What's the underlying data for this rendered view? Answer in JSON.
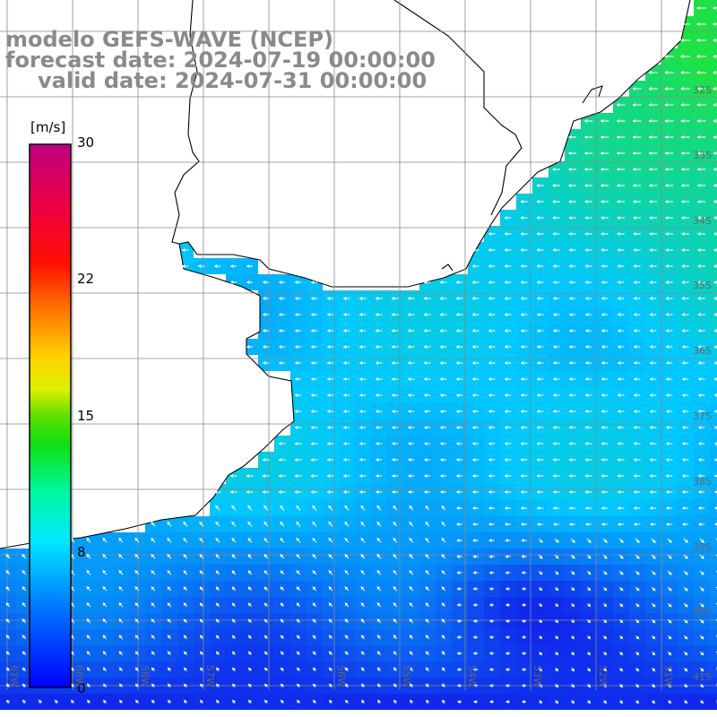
{
  "title": {
    "line1": "modelo GEFS-WAVE (NCEP)",
    "line2": "forecast date: 2024-07-19 00:00:00",
    "line3": "valid date: 2024-07-31 00:00:00"
  },
  "colorbar": {
    "unit": "[m/s]",
    "ticks": [
      "30",
      "22",
      "15",
      "8",
      "0"
    ],
    "min": 0,
    "max": 30
  },
  "map": {
    "variable": "wind speed and direction",
    "lat_labels": [
      "32S",
      "33S",
      "34S",
      "35S",
      "36S",
      "37S",
      "38S",
      "39S",
      "40S",
      "41S"
    ],
    "lon_labels": [
      "61W",
      "60W",
      "58W",
      "57W",
      "56W",
      "55W",
      "54W",
      "53W",
      "52W",
      "51W"
    ],
    "colors": {
      "ocean_low": "#1030f0",
      "ocean_mid": "#00c8ff",
      "ocean_high": "#20e040",
      "land": "#ffffff",
      "coastline": "#000000",
      "grid": "#888888",
      "arrows": "#ffffff"
    }
  }
}
